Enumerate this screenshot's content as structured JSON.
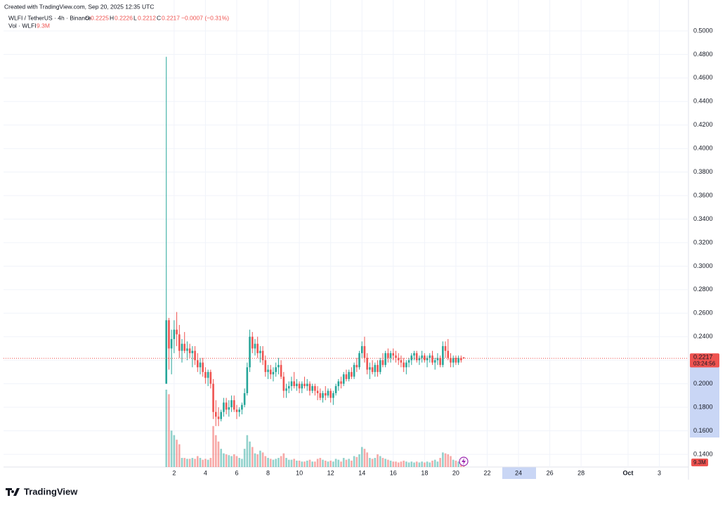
{
  "header": {
    "created": "Created with TradingView.com, Sep 20, 2025 12:35 UTC",
    "symbol": "WLFI / TetherUS · 4h · Binance",
    "open_letter": "O",
    "high_letter": "H",
    "low_letter": "L",
    "close_letter": "C",
    "change": "−0.0007 (−0.31%)",
    "volume_title": "Vol · WLFI",
    "volume_value_label": "9.3M",
    "countdown": "03:24:56",
    "brand": "TradingView"
  },
  "chart_data": {
    "type": "candlestick",
    "up_color": "#26a69a",
    "down_color": "#ef5350",
    "grid": true,
    "x": [
      1.5,
      1.667,
      1.833,
      2,
      2.167,
      2.333,
      2.5,
      2.667,
      2.833,
      3,
      3.167,
      3.333,
      3.5,
      3.667,
      3.833,
      4,
      4.167,
      4.333,
      4.5,
      4.667,
      4.833,
      5,
      5.167,
      5.333,
      5.5,
      5.667,
      5.833,
      6,
      6.167,
      6.333,
      6.5,
      6.667,
      6.833,
      7,
      7.167,
      7.333,
      7.5,
      7.667,
      7.833,
      8,
      8.167,
      8.333,
      8.5,
      8.667,
      8.833,
      9,
      9.167,
      9.333,
      9.5,
      9.667,
      9.833,
      10,
      10.167,
      10.333,
      10.5,
      10.667,
      10.833,
      11,
      11.167,
      11.333,
      11.5,
      11.667,
      11.833,
      12,
      12.167,
      12.333,
      12.5,
      12.667,
      12.833,
      13,
      13.167,
      13.333,
      13.5,
      13.667,
      13.833,
      14,
      14.167,
      14.333,
      14.5,
      14.667,
      14.833,
      15,
      15.167,
      15.333,
      15.5,
      15.667,
      15.833,
      16,
      16.167,
      16.333,
      16.5,
      16.667,
      16.833,
      17,
      17.167,
      17.333,
      17.5,
      17.667,
      17.833,
      18,
      18.167,
      18.333,
      18.5,
      18.667,
      18.833,
      19,
      19.167,
      19.333,
      19.5,
      19.667,
      19.833,
      20,
      20.167,
      20.333,
      20.5
    ],
    "open": [
      0.2,
      0.254,
      0.23,
      0.238,
      0.246,
      0.242,
      0.228,
      0.234,
      0.228,
      0.23,
      0.226,
      0.228,
      0.22,
      0.214,
      0.218,
      0.21,
      0.205,
      0.21,
      0.2,
      0.176,
      0.172,
      0.17,
      0.176,
      0.184,
      0.178,
      0.18,
      0.186,
      0.178,
      0.176,
      0.178,
      0.182,
      0.192,
      0.214,
      0.24,
      0.23,
      0.234,
      0.226,
      0.228,
      0.22,
      0.21,
      0.212,
      0.208,
      0.21,
      0.214,
      0.216,
      0.206,
      0.194,
      0.196,
      0.198,
      0.202,
      0.198,
      0.2,
      0.196,
      0.2,
      0.198,
      0.2,
      0.194,
      0.198,
      0.194,
      0.192,
      0.188,
      0.192,
      0.19,
      0.194,
      0.188,
      0.192,
      0.198,
      0.202,
      0.2,
      0.208,
      0.204,
      0.21,
      0.206,
      0.216,
      0.214,
      0.226,
      0.232,
      0.222,
      0.212,
      0.214,
      0.21,
      0.216,
      0.21,
      0.22,
      0.216,
      0.226,
      0.222,
      0.226,
      0.224,
      0.222,
      0.22,
      0.218,
      0.214,
      0.218,
      0.22,
      0.224,
      0.226,
      0.22,
      0.222,
      0.224,
      0.22,
      0.222,
      0.224,
      0.218,
      0.22,
      0.222,
      0.216,
      0.232,
      0.228,
      0.222,
      0.218,
      0.222,
      0.218,
      0.222,
      0.2225
    ],
    "high": [
      0.478,
      0.256,
      0.246,
      0.254,
      0.261,
      0.25,
      0.238,
      0.244,
      0.236,
      0.234,
      0.232,
      0.232,
      0.226,
      0.222,
      0.222,
      0.214,
      0.212,
      0.212,
      0.204,
      0.186,
      0.18,
      0.178,
      0.188,
      0.188,
      0.186,
      0.19,
      0.19,
      0.182,
      0.18,
      0.184,
      0.196,
      0.218,
      0.246,
      0.244,
      0.238,
      0.24,
      0.232,
      0.232,
      0.224,
      0.216,
      0.216,
      0.214,
      0.218,
      0.222,
      0.22,
      0.21,
      0.2,
      0.202,
      0.206,
      0.21,
      0.204,
      0.202,
      0.202,
      0.206,
      0.204,
      0.202,
      0.2,
      0.2,
      0.198,
      0.196,
      0.194,
      0.198,
      0.196,
      0.196,
      0.194,
      0.2,
      0.204,
      0.206,
      0.21,
      0.212,
      0.212,
      0.214,
      0.218,
      0.222,
      0.228,
      0.236,
      0.24,
      0.226,
      0.218,
      0.22,
      0.218,
      0.22,
      0.222,
      0.226,
      0.228,
      0.23,
      0.228,
      0.23,
      0.228,
      0.226,
      0.224,
      0.222,
      0.22,
      0.222,
      0.226,
      0.228,
      0.228,
      0.224,
      0.228,
      0.226,
      0.224,
      0.226,
      0.228,
      0.222,
      0.226,
      0.224,
      0.236,
      0.236,
      0.238,
      0.226,
      0.224,
      0.224,
      0.224,
      0.224,
      0.2226
    ],
    "low": [
      0.2,
      0.212,
      0.208,
      0.226,
      0.232,
      0.222,
      0.218,
      0.226,
      0.22,
      0.222,
      0.214,
      0.216,
      0.21,
      0.208,
      0.206,
      0.2,
      0.198,
      0.196,
      0.17,
      0.164,
      0.164,
      0.168,
      0.172,
      0.174,
      0.172,
      0.176,
      0.176,
      0.17,
      0.172,
      0.174,
      0.18,
      0.19,
      0.21,
      0.226,
      0.224,
      0.222,
      0.218,
      0.216,
      0.206,
      0.204,
      0.204,
      0.202,
      0.206,
      0.208,
      0.204,
      0.188,
      0.188,
      0.192,
      0.194,
      0.196,
      0.194,
      0.192,
      0.192,
      0.196,
      0.194,
      0.19,
      0.192,
      0.19,
      0.186,
      0.186,
      0.184,
      0.186,
      0.188,
      0.184,
      0.182,
      0.19,
      0.194,
      0.196,
      0.198,
      0.202,
      0.202,
      0.204,
      0.204,
      0.21,
      0.212,
      0.222,
      0.218,
      0.208,
      0.204,
      0.208,
      0.206,
      0.206,
      0.208,
      0.214,
      0.214,
      0.218,
      0.218,
      0.22,
      0.218,
      0.216,
      0.214,
      0.21,
      0.208,
      0.214,
      0.216,
      0.22,
      0.218,
      0.216,
      0.218,
      0.218,
      0.214,
      0.218,
      0.216,
      0.212,
      0.216,
      0.214,
      0.214,
      0.222,
      0.22,
      0.214,
      0.214,
      0.216,
      0.216,
      0.218,
      0.2212
    ],
    "close": [
      0.254,
      0.23,
      0.238,
      0.246,
      0.242,
      0.228,
      0.234,
      0.228,
      0.23,
      0.226,
      0.228,
      0.22,
      0.214,
      0.218,
      0.21,
      0.205,
      0.21,
      0.2,
      0.176,
      0.172,
      0.17,
      0.176,
      0.184,
      0.178,
      0.18,
      0.186,
      0.178,
      0.176,
      0.178,
      0.182,
      0.192,
      0.214,
      0.24,
      0.23,
      0.234,
      0.226,
      0.228,
      0.22,
      0.21,
      0.212,
      0.208,
      0.21,
      0.214,
      0.216,
      0.206,
      0.194,
      0.196,
      0.198,
      0.202,
      0.198,
      0.2,
      0.196,
      0.2,
      0.198,
      0.2,
      0.194,
      0.198,
      0.194,
      0.192,
      0.188,
      0.192,
      0.19,
      0.194,
      0.188,
      0.192,
      0.198,
      0.202,
      0.2,
      0.208,
      0.204,
      0.21,
      0.206,
      0.216,
      0.214,
      0.226,
      0.232,
      0.222,
      0.212,
      0.214,
      0.21,
      0.216,
      0.21,
      0.22,
      0.216,
      0.226,
      0.222,
      0.226,
      0.224,
      0.222,
      0.22,
      0.218,
      0.214,
      0.218,
      0.22,
      0.224,
      0.226,
      0.22,
      0.222,
      0.224,
      0.22,
      0.222,
      0.224,
      0.218,
      0.22,
      0.222,
      0.216,
      0.232,
      0.228,
      0.222,
      0.218,
      0.222,
      0.218,
      0.222,
      0.22,
      0.2217
    ],
    "volume": [
      85,
      80,
      40,
      35,
      30,
      25,
      10,
      10,
      9,
      9,
      10,
      9,
      12,
      10,
      8,
      9,
      8,
      10,
      45,
      35,
      28,
      20,
      15,
      14,
      13,
      12,
      14,
      12,
      10,
      9,
      20,
      35,
      28,
      22,
      15,
      14,
      18,
      16,
      12,
      10,
      9,
      8,
      9,
      10,
      12,
      15,
      10,
      8,
      8,
      9,
      7,
      7,
      6,
      6,
      7,
      8,
      6,
      6,
      9,
      10,
      8,
      7,
      6,
      7,
      6,
      9,
      8,
      6,
      10,
      8,
      9,
      7,
      12,
      11,
      14,
      22,
      20,
      16,
      10,
      9,
      10,
      14,
      12,
      10,
      9,
      8,
      7,
      6,
      6,
      5,
      6,
      7,
      6,
      5,
      6,
      5,
      6,
      5,
      6,
      5,
      6,
      5,
      7,
      8,
      6,
      10,
      16,
      15,
      14,
      12,
      8,
      7,
      6,
      6,
      9.3
    ],
    "ylim": [
      0.1292,
      0.5263
    ],
    "yticks": [
      {
        "value": 0.14,
        "label": "0.1400"
      },
      {
        "value": 0.16,
        "label": "0.1600"
      },
      {
        "value": 0.18,
        "label": "0.1800"
      },
      {
        "value": 0.2,
        "label": "0.2000"
      },
      {
        "value": 0.22,
        "label": "0.2200"
      },
      {
        "value": 0.24,
        "label": "0.2400"
      },
      {
        "value": 0.26,
        "label": "0.2600"
      },
      {
        "value": 0.28,
        "label": "0.2800"
      },
      {
        "value": 0.3,
        "label": "0.3000"
      },
      {
        "value": 0.32,
        "label": "0.3200"
      },
      {
        "value": 0.34,
        "label": "0.3400"
      },
      {
        "value": 0.36,
        "label": "0.3600"
      },
      {
        "value": 0.38,
        "label": "0.3800"
      },
      {
        "value": 0.4,
        "label": "0.4000"
      },
      {
        "value": 0.42,
        "label": "0.4200"
      },
      {
        "value": 0.44,
        "label": "0.4400"
      },
      {
        "value": 0.46,
        "label": "0.4600"
      },
      {
        "value": 0.48,
        "label": "0.4800"
      },
      {
        "value": 0.5,
        "label": "0.5000"
      }
    ],
    "xlim": [
      -8.9,
      34.86
    ],
    "xticks": [
      2,
      4,
      6,
      8,
      10,
      12,
      14,
      16,
      18,
      20,
      22,
      24,
      26,
      28,
      {
        "value": 31,
        "label": "Oct"
      },
      {
        "value": 33,
        "label": "3"
      }
    ]
  }
}
